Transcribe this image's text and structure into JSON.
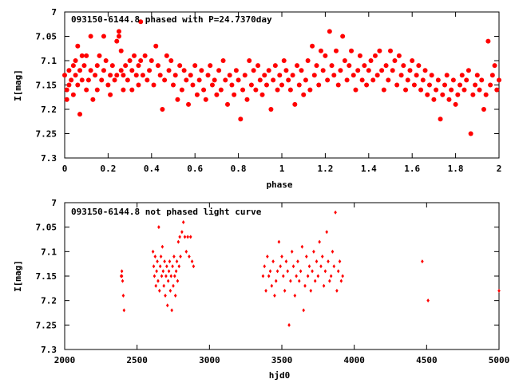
{
  "chart_data": [
    {
      "type": "scatter",
      "title": "093150-6144.8 phased with P=24.7370day",
      "xlabel": "phase",
      "ylabel": "I[mag]",
      "xlim": [
        0,
        2
      ],
      "ylim": [
        7.3,
        7.0
      ],
      "y_inverted": true,
      "xticks": [
        0,
        0.2,
        0.4,
        0.6,
        0.8,
        1,
        1.2,
        1.4,
        1.6,
        1.8,
        2
      ],
      "yticks": [
        7,
        7.05,
        7.1,
        7.15,
        7.2,
        7.25,
        7.3
      ],
      "marker_color": "#ff0000",
      "marker": "filled-circle",
      "points": [
        [
          0.0,
          7.13
        ],
        [
          0.01,
          7.16
        ],
        [
          0.01,
          7.18
        ],
        [
          0.02,
          7.15
        ],
        [
          0.02,
          7.12
        ],
        [
          0.03,
          7.14
        ],
        [
          0.04,
          7.11
        ],
        [
          0.04,
          7.17
        ],
        [
          0.05,
          7.13
        ],
        [
          0.05,
          7.1
        ],
        [
          0.06,
          7.07
        ],
        [
          0.06,
          7.15
        ],
        [
          0.07,
          7.21
        ],
        [
          0.07,
          7.12
        ],
        [
          0.08,
          7.09
        ],
        [
          0.08,
          7.14
        ],
        [
          0.09,
          7.11
        ],
        [
          0.1,
          7.16
        ],
        [
          0.1,
          7.09
        ],
        [
          0.11,
          7.14
        ],
        [
          0.12,
          7.12
        ],
        [
          0.12,
          7.05
        ],
        [
          0.13,
          7.18
        ],
        [
          0.14,
          7.13
        ],
        [
          0.15,
          7.11
        ],
        [
          0.15,
          7.16
        ],
        [
          0.16,
          7.09
        ],
        [
          0.17,
          7.14
        ],
        [
          0.18,
          7.05
        ],
        [
          0.18,
          7.12
        ],
        [
          0.19,
          7.1
        ],
        [
          0.2,
          7.15
        ],
        [
          0.21,
          7.13
        ],
        [
          0.21,
          7.17
        ],
        [
          0.22,
          7.11
        ],
        [
          0.23,
          7.14
        ],
        [
          0.24,
          7.06
        ],
        [
          0.24,
          7.13
        ],
        [
          0.25,
          7.05
        ],
        [
          0.25,
          7.04
        ],
        [
          0.26,
          7.12
        ],
        [
          0.26,
          7.08
        ],
        [
          0.27,
          7.16
        ],
        [
          0.27,
          7.13
        ],
        [
          0.28,
          7.11
        ],
        [
          0.29,
          7.14
        ],
        [
          0.3,
          7.1
        ],
        [
          0.31,
          7.12
        ],
        [
          0.31,
          7.16
        ],
        [
          0.32,
          7.09
        ],
        [
          0.33,
          7.13
        ],
        [
          0.34,
          7.11
        ],
        [
          0.34,
          7.15
        ],
        [
          0.35,
          7.02
        ],
        [
          0.35,
          7.1
        ],
        [
          0.36,
          7.13
        ],
        [
          0.37,
          7.09
        ],
        [
          0.38,
          7.14
        ],
        [
          0.39,
          7.12
        ],
        [
          0.4,
          7.1
        ],
        [
          0.41,
          7.15
        ],
        [
          0.42,
          7.07
        ],
        [
          0.43,
          7.11
        ],
        [
          0.44,
          7.13
        ],
        [
          0.45,
          7.2
        ],
        [
          0.46,
          7.14
        ],
        [
          0.47,
          7.09
        ],
        [
          0.48,
          7.12
        ],
        [
          0.49,
          7.1
        ],
        [
          0.5,
          7.15
        ],
        [
          0.51,
          7.13
        ],
        [
          0.52,
          7.18
        ],
        [
          0.53,
          7.11
        ],
        [
          0.54,
          7.16
        ],
        [
          0.55,
          7.12
        ],
        [
          0.56,
          7.14
        ],
        [
          0.57,
          7.19
        ],
        [
          0.58,
          7.13
        ],
        [
          0.59,
          7.15
        ],
        [
          0.6,
          7.11
        ],
        [
          0.61,
          7.17
        ],
        [
          0.62,
          7.14
        ],
        [
          0.63,
          7.12
        ],
        [
          0.64,
          7.16
        ],
        [
          0.65,
          7.18
        ],
        [
          0.66,
          7.13
        ],
        [
          0.67,
          7.11
        ],
        [
          0.68,
          7.15
        ],
        [
          0.69,
          7.14
        ],
        [
          0.7,
          7.17
        ],
        [
          0.71,
          7.12
        ],
        [
          0.72,
          7.16
        ],
        [
          0.73,
          7.1
        ],
        [
          0.74,
          7.14
        ],
        [
          0.75,
          7.19
        ],
        [
          0.76,
          7.13
        ],
        [
          0.77,
          7.15
        ],
        [
          0.78,
          7.17
        ],
        [
          0.79,
          7.12
        ],
        [
          0.8,
          7.14
        ],
        [
          0.81,
          7.22
        ],
        [
          0.82,
          7.16
        ],
        [
          0.83,
          7.13
        ],
        [
          0.84,
          7.18
        ],
        [
          0.85,
          7.1
        ],
        [
          0.86,
          7.15
        ],
        [
          0.87,
          7.12
        ],
        [
          0.88,
          7.16
        ],
        [
          0.89,
          7.11
        ],
        [
          0.9,
          7.14
        ],
        [
          0.91,
          7.17
        ],
        [
          0.92,
          7.13
        ],
        [
          0.93,
          7.15
        ],
        [
          0.94,
          7.12
        ],
        [
          0.95,
          7.2
        ],
        [
          0.96,
          7.14
        ],
        [
          0.97,
          7.11
        ],
        [
          0.98,
          7.16
        ],
        [
          0.99,
          7.13
        ],
        [
          1.0,
          7.15
        ],
        [
          1.01,
          7.1
        ],
        [
          1.02,
          7.12
        ],
        [
          1.03,
          7.14
        ],
        [
          1.04,
          7.16
        ],
        [
          1.05,
          7.13
        ],
        [
          1.06,
          7.19
        ],
        [
          1.07,
          7.11
        ],
        [
          1.08,
          7.15
        ],
        [
          1.09,
          7.12
        ],
        [
          1.1,
          7.17
        ],
        [
          1.11,
          7.14
        ],
        [
          1.12,
          7.1
        ],
        [
          1.13,
          7.16
        ],
        [
          1.14,
          7.07
        ],
        [
          1.15,
          7.13
        ],
        [
          1.16,
          7.11
        ],
        [
          1.17,
          7.15
        ],
        [
          1.18,
          7.08
        ],
        [
          1.19,
          7.12
        ],
        [
          1.2,
          7.09
        ],
        [
          1.21,
          7.14
        ],
        [
          1.22,
          7.04
        ],
        [
          1.23,
          7.11
        ],
        [
          1.24,
          7.13
        ],
        [
          1.25,
          7.08
        ],
        [
          1.26,
          7.15
        ],
        [
          1.27,
          7.12
        ],
        [
          1.28,
          7.05
        ],
        [
          1.29,
          7.1
        ],
        [
          1.3,
          7.14
        ],
        [
          1.31,
          7.11
        ],
        [
          1.32,
          7.08
        ],
        [
          1.33,
          7.13
        ],
        [
          1.34,
          7.16
        ],
        [
          1.35,
          7.12
        ],
        [
          1.36,
          7.09
        ],
        [
          1.37,
          7.14
        ],
        [
          1.38,
          7.11
        ],
        [
          1.39,
          7.15
        ],
        [
          1.4,
          7.12
        ],
        [
          1.41,
          7.1
        ],
        [
          1.42,
          7.14
        ],
        [
          1.43,
          7.09
        ],
        [
          1.44,
          7.13
        ],
        [
          1.45,
          7.08
        ],
        [
          1.46,
          7.12
        ],
        [
          1.47,
          7.16
        ],
        [
          1.48,
          7.11
        ],
        [
          1.49,
          7.14
        ],
        [
          1.5,
          7.08
        ],
        [
          1.51,
          7.12
        ],
        [
          1.52,
          7.1
        ],
        [
          1.53,
          7.15
        ],
        [
          1.54,
          7.09
        ],
        [
          1.55,
          7.13
        ],
        [
          1.56,
          7.11
        ],
        [
          1.57,
          7.16
        ],
        [
          1.58,
          7.14
        ],
        [
          1.59,
          7.12
        ],
        [
          1.6,
          7.1
        ],
        [
          1.61,
          7.15
        ],
        [
          1.62,
          7.13
        ],
        [
          1.63,
          7.11
        ],
        [
          1.64,
          7.16
        ],
        [
          1.65,
          7.14
        ],
        [
          1.66,
          7.12
        ],
        [
          1.67,
          7.17
        ],
        [
          1.68,
          7.15
        ],
        [
          1.69,
          7.13
        ],
        [
          1.7,
          7.18
        ],
        [
          1.71,
          7.16
        ],
        [
          1.72,
          7.14
        ],
        [
          1.73,
          7.22
        ],
        [
          1.74,
          7.17
        ],
        [
          1.75,
          7.15
        ],
        [
          1.76,
          7.13
        ],
        [
          1.77,
          7.18
        ],
        [
          1.78,
          7.16
        ],
        [
          1.79,
          7.14
        ],
        [
          1.8,
          7.19
        ],
        [
          1.81,
          7.17
        ],
        [
          1.82,
          7.15
        ],
        [
          1.83,
          7.13
        ],
        [
          1.84,
          7.16
        ],
        [
          1.85,
          7.14
        ],
        [
          1.86,
          7.12
        ],
        [
          1.87,
          7.25
        ],
        [
          1.88,
          7.17
        ],
        [
          1.89,
          7.15
        ],
        [
          1.9,
          7.13
        ],
        [
          1.91,
          7.16
        ],
        [
          1.92,
          7.14
        ],
        [
          1.93,
          7.2
        ],
        [
          1.94,
          7.17
        ],
        [
          1.95,
          7.06
        ],
        [
          1.96,
          7.15
        ],
        [
          1.97,
          7.13
        ],
        [
          1.98,
          7.11
        ],
        [
          1.99,
          7.16
        ],
        [
          2.0,
          7.14
        ]
      ]
    },
    {
      "type": "scatter",
      "title": "093150-6144.8 not phased light curve",
      "xlabel": "hjd0",
      "ylabel": "I[mag]",
      "xlim": [
        2000,
        5000
      ],
      "ylim": [
        7.3,
        7.0
      ],
      "y_inverted": true,
      "xticks": [
        2000,
        2500,
        3000,
        3500,
        4000,
        4500,
        5000
      ],
      "yticks": [
        7,
        7.05,
        7.1,
        7.15,
        7.2,
        7.25,
        7.3
      ],
      "marker_color": "#ff0000",
      "marker": "small-diamond",
      "points": [
        [
          2390,
          7.15
        ],
        [
          2395,
          7.14
        ],
        [
          2400,
          7.16
        ],
        [
          2405,
          7.19
        ],
        [
          2410,
          7.22
        ],
        [
          2395,
          7.15
        ],
        [
          2610,
          7.1
        ],
        [
          2615,
          7.13
        ],
        [
          2620,
          7.15
        ],
        [
          2625,
          7.11
        ],
        [
          2630,
          7.17
        ],
        [
          2635,
          7.14
        ],
        [
          2640,
          7.12
        ],
        [
          2645,
          7.16
        ],
        [
          2650,
          7.05
        ],
        [
          2655,
          7.18
        ],
        [
          2660,
          7.13
        ],
        [
          2665,
          7.11
        ],
        [
          2670,
          7.15
        ],
        [
          2675,
          7.09
        ],
        [
          2680,
          7.14
        ],
        [
          2685,
          7.17
        ],
        [
          2690,
          7.12
        ],
        [
          2695,
          7.19
        ],
        [
          2700,
          7.15
        ],
        [
          2705,
          7.13
        ],
        [
          2710,
          7.21
        ],
        [
          2715,
          7.16
        ],
        [
          2720,
          7.14
        ],
        [
          2725,
          7.12
        ],
        [
          2730,
          7.18
        ],
        [
          2735,
          7.15
        ],
        [
          2740,
          7.22
        ],
        [
          2745,
          7.13
        ],
        [
          2750,
          7.17
        ],
        [
          2755,
          7.11
        ],
        [
          2760,
          7.15
        ],
        [
          2765,
          7.19
        ],
        [
          2770,
          7.14
        ],
        [
          2775,
          7.12
        ],
        [
          2780,
          7.16
        ],
        [
          2785,
          7.08
        ],
        [
          2790,
          7.13
        ],
        [
          2795,
          7.07
        ],
        [
          2800,
          7.11
        ],
        [
          2810,
          7.06
        ],
        [
          2820,
          7.04
        ],
        [
          2830,
          7.07
        ],
        [
          2840,
          7.1
        ],
        [
          2850,
          7.07
        ],
        [
          2860,
          7.11
        ],
        [
          2870,
          7.07
        ],
        [
          2880,
          7.12
        ],
        [
          2890,
          7.13
        ],
        [
          3370,
          7.15
        ],
        [
          3380,
          7.13
        ],
        [
          3390,
          7.18
        ],
        [
          3400,
          7.11
        ],
        [
          3410,
          7.15
        ],
        [
          3420,
          7.14
        ],
        [
          3430,
          7.17
        ],
        [
          3440,
          7.12
        ],
        [
          3450,
          7.19
        ],
        [
          3460,
          7.16
        ],
        [
          3470,
          7.14
        ],
        [
          3480,
          7.08
        ],
        [
          3490,
          7.13
        ],
        [
          3500,
          7.11
        ],
        [
          3510,
          7.15
        ],
        [
          3520,
          7.18
        ],
        [
          3530,
          7.12
        ],
        [
          3540,
          7.14
        ],
        [
          3550,
          7.25
        ],
        [
          3560,
          7.16
        ],
        [
          3570,
          7.1
        ],
        [
          3580,
          7.13
        ],
        [
          3590,
          7.19
        ],
        [
          3600,
          7.15
        ],
        [
          3610,
          7.12
        ],
        [
          3620,
          7.16
        ],
        [
          3630,
          7.14
        ],
        [
          3640,
          7.09
        ],
        [
          3650,
          7.22
        ],
        [
          3660,
          7.17
        ],
        [
          3670,
          7.11
        ],
        [
          3680,
          7.15
        ],
        [
          3690,
          7.13
        ],
        [
          3700,
          7.18
        ],
        [
          3710,
          7.14
        ],
        [
          3720,
          7.1
        ],
        [
          3730,
          7.16
        ],
        [
          3740,
          7.12
        ],
        [
          3750,
          7.15
        ],
        [
          3760,
          7.08
        ],
        [
          3770,
          7.13
        ],
        [
          3780,
          7.11
        ],
        [
          3790,
          7.17
        ],
        [
          3800,
          7.14
        ],
        [
          3810,
          7.06
        ],
        [
          3820,
          7.12
        ],
        [
          3830,
          7.16
        ],
        [
          3840,
          7.15
        ],
        [
          3850,
          7.1
        ],
        [
          3860,
          7.13
        ],
        [
          3870,
          7.02
        ],
        [
          3880,
          7.18
        ],
        [
          3890,
          7.14
        ],
        [
          3900,
          7.12
        ],
        [
          3910,
          7.16
        ],
        [
          3920,
          7.15
        ],
        [
          4470,
          7.12
        ],
        [
          4510,
          7.2
        ],
        [
          5000,
          7.18
        ]
      ]
    }
  ]
}
